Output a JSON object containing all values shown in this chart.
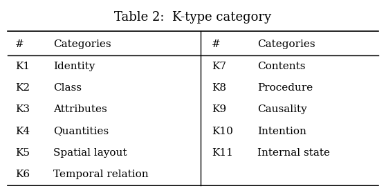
{
  "title": "Table 2:  K-type category",
  "left_col": [
    [
      "#",
      "Categories"
    ],
    [
      "K1",
      "Identity"
    ],
    [
      "K2",
      "Class"
    ],
    [
      "K3",
      "Attributes"
    ],
    [
      "K4",
      "Quantities"
    ],
    [
      "K5",
      "Spatial layout"
    ],
    [
      "K6",
      "Temporal relation"
    ]
  ],
  "right_col": [
    [
      "#",
      "Categories"
    ],
    [
      "K7",
      "Contents"
    ],
    [
      "K8",
      "Procedure"
    ],
    [
      "K9",
      "Causality"
    ],
    [
      "K10",
      "Intention"
    ],
    [
      "K11",
      "Internal state"
    ],
    [
      "",
      ""
    ]
  ],
  "background_color": "#ffffff",
  "text_color": "#000000",
  "font_size": 11,
  "title_font_size": 13
}
